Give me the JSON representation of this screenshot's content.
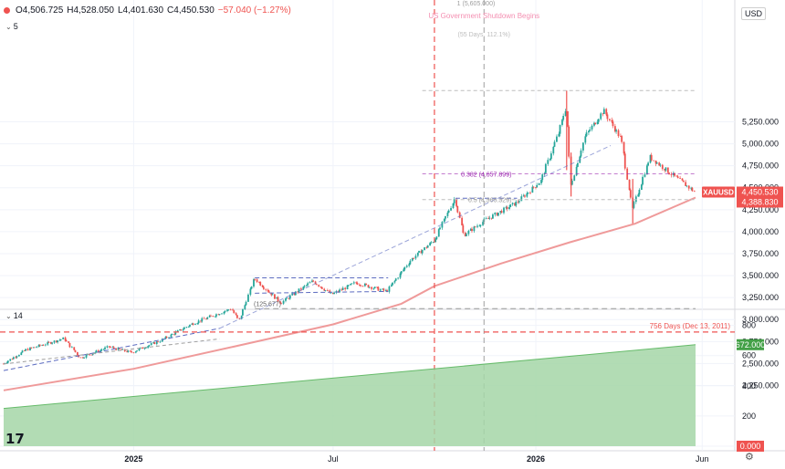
{
  "header": {
    "ohlc": {
      "open": "O4,506.725",
      "high": "H4,528.050",
      "low": "L4,401.630",
      "close": "C4,450.530",
      "change": "−57.040 (−1.27%)"
    },
    "currency": "USD"
  },
  "panes": {
    "price_tag": "5",
    "indicator_tag": "14"
  },
  "colors": {
    "up": "#26a69a",
    "down": "#ef5350",
    "ma": "#ef9a9a",
    "area": "#a5d6a7",
    "area_edge": "#66bb6a",
    "marker": "#ef5350",
    "fib": "#9c27b0",
    "trend": "#5c6bc0"
  },
  "chart_data": [
    {
      "type": "candlestick",
      "symbol": "XAUUSD",
      "x_ticks": [
        "2025",
        "Jul",
        "2026",
        "Jun"
      ],
      "y_ticks": [
        "2,250.000",
        "2,500.000",
        "2,750.000",
        "3,000.000",
        "3,250.000",
        "3,500.000",
        "3,750.000",
        "4,000.000",
        "4,250.000",
        "4,500.000",
        "4,750.000",
        "5,000.000",
        "5,250.000"
      ],
      "ylim": [
        2200,
        5530
      ],
      "x_range": [
        "2024-09",
        "2026-06"
      ],
      "price_path": [
        {
          "date": "2024-09-05",
          "price": 2498
        },
        {
          "date": "2024-09-26",
          "price": 2658
        },
        {
          "date": "2024-10-30",
          "price": 2785
        },
        {
          "date": "2024-11-14",
          "price": 2565
        },
        {
          "date": "2024-12-10",
          "price": 2690
        },
        {
          "date": "2024-12-30",
          "price": 2625
        },
        {
          "date": "2025-01-27",
          "price": 2768
        },
        {
          "date": "2025-02-24",
          "price": 2955
        },
        {
          "date": "2025-03-31",
          "price": 3125
        },
        {
          "date": "2025-04-07",
          "price": 2985
        },
        {
          "date": "2025-04-21",
          "price": 3470
        },
        {
          "date": "2025-05-15",
          "price": 3190
        },
        {
          "date": "2025-06-13",
          "price": 3440
        },
        {
          "date": "2025-06-30",
          "price": 3285
        },
        {
          "date": "2025-07-22",
          "price": 3420
        },
        {
          "date": "2025-08-19",
          "price": 3320
        },
        {
          "date": "2025-09-10",
          "price": 3680
        },
        {
          "date": "2025-10-01",
          "price": 3900
        },
        {
          "date": "2025-10-20",
          "price": 4380
        },
        {
          "date": "2025-10-28",
          "price": 3960
        },
        {
          "date": "2025-11-15",
          "price": 4120
        },
        {
          "date": "2025-12-15",
          "price": 4330
        },
        {
          "date": "2026-01-06",
          "price": 4580
        },
        {
          "date": "2026-01-22",
          "price": 5120
        },
        {
          "date": "2026-01-29",
          "price": 5420
        },
        {
          "date": "2026-02-02",
          "price": 4520
        },
        {
          "date": "2026-02-15",
          "price": 5080
        },
        {
          "date": "2026-03-04",
          "price": 5380
        },
        {
          "date": "2026-03-20",
          "price": 5050
        },
        {
          "date": "2026-03-30",
          "price": 4250
        },
        {
          "date": "2026-04-15",
          "price": 4850
        },
        {
          "date": "2026-05-05",
          "price": 4650
        },
        {
          "date": "2026-05-26",
          "price": 4450
        }
      ],
      "moving_average": [
        {
          "date": "2024-09-05",
          "price": 2195
        },
        {
          "date": "2025-01-01",
          "price": 2440
        },
        {
          "date": "2025-04-01",
          "price": 2690
        },
        {
          "date": "2025-07-01",
          "price": 2945
        },
        {
          "date": "2025-09-01",
          "price": 3180
        },
        {
          "date": "2025-10-01",
          "price": 3380
        },
        {
          "date": "2025-12-01",
          "price": 3640
        },
        {
          "date": "2026-02-01",
          "price": 3880
        },
        {
          "date": "2026-04-01",
          "price": 4090
        },
        {
          "date": "2026-05-26",
          "price": 4388
        }
      ],
      "price_labels": [
        {
          "symbol": "XAUUSD",
          "value": "4,450.530"
        },
        {
          "value": "4,388.830"
        }
      ],
      "annotations": [
        "US Government Shutdown Begins",
        "(55 Days, 112.1%)",
        "0.382 (4,657.899)",
        "0.5 (4,365.329)",
        "(125.677)",
        "1 (5,605.000)"
      ],
      "grid": true
    },
    {
      "type": "area",
      "y_ticks": [
        "0.000",
        "200",
        "400",
        "600",
        "800"
      ],
      "ylim": [
        -20,
        860
      ],
      "x": [
        "2024-09-05",
        "2026-05-26"
      ],
      "values": [
        250,
        672
      ],
      "current_label": "672.000",
      "reference_line": {
        "value": 756,
        "label": "756 Days (Dec 13, 2011)"
      }
    }
  ]
}
